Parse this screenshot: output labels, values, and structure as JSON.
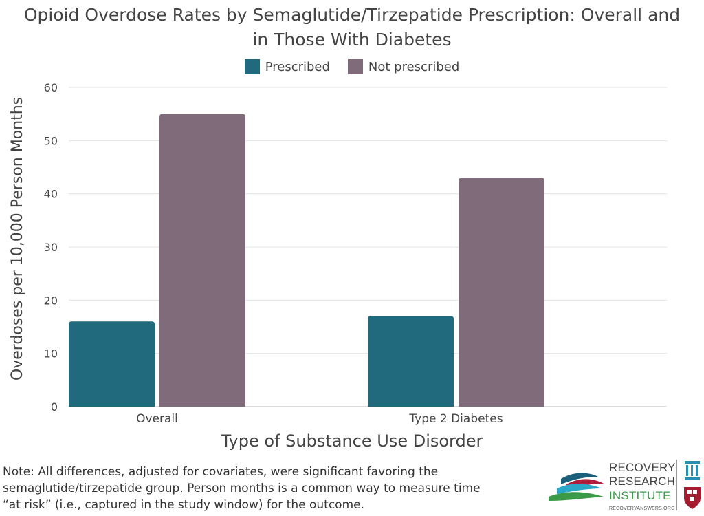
{
  "title_line1": "Opioid Overdose Rates by Semaglutide/Tirzepatide Prescription: Overall and",
  "title_line2": "in Those With Diabetes",
  "note": "Note: All differences, adjusted for covariates, were significant favoring the semaglutide/tirzepatide  group. Person months is a common way to measure time “at risk” (i.e., captured in the study window) for the outcome.",
  "logo": {
    "line1": "RECOVERY",
    "line2": "RESEARCH",
    "line3": "INSTITUTE",
    "url": "RECOVERYANSWERS.ORG"
  },
  "colors": {
    "prescribed": "#216a7e",
    "not_prescribed": "#806b7b",
    "grid": "#e3e3e3",
    "axis_text": "#444444"
  },
  "chart_data": {
    "type": "bar",
    "title": "Opioid Overdose Rates by Semaglutide/Tirzepatide Prescription: Overall and in Those With Diabetes",
    "xlabel": "Type of Substance Use Disorder",
    "ylabel": "Overdoses per 10,000 Person Months",
    "categories": [
      "Overall",
      "Type 2 Diabetes"
    ],
    "series": [
      {
        "name": "Prescribed",
        "values": [
          16,
          17
        ]
      },
      {
        "name": "Not prescribed",
        "values": [
          55,
          43
        ]
      }
    ],
    "ylim": [
      0,
      60
    ],
    "yticks": [
      0,
      10,
      20,
      30,
      40,
      50,
      60
    ],
    "grid": true,
    "legend": "top-center"
  }
}
